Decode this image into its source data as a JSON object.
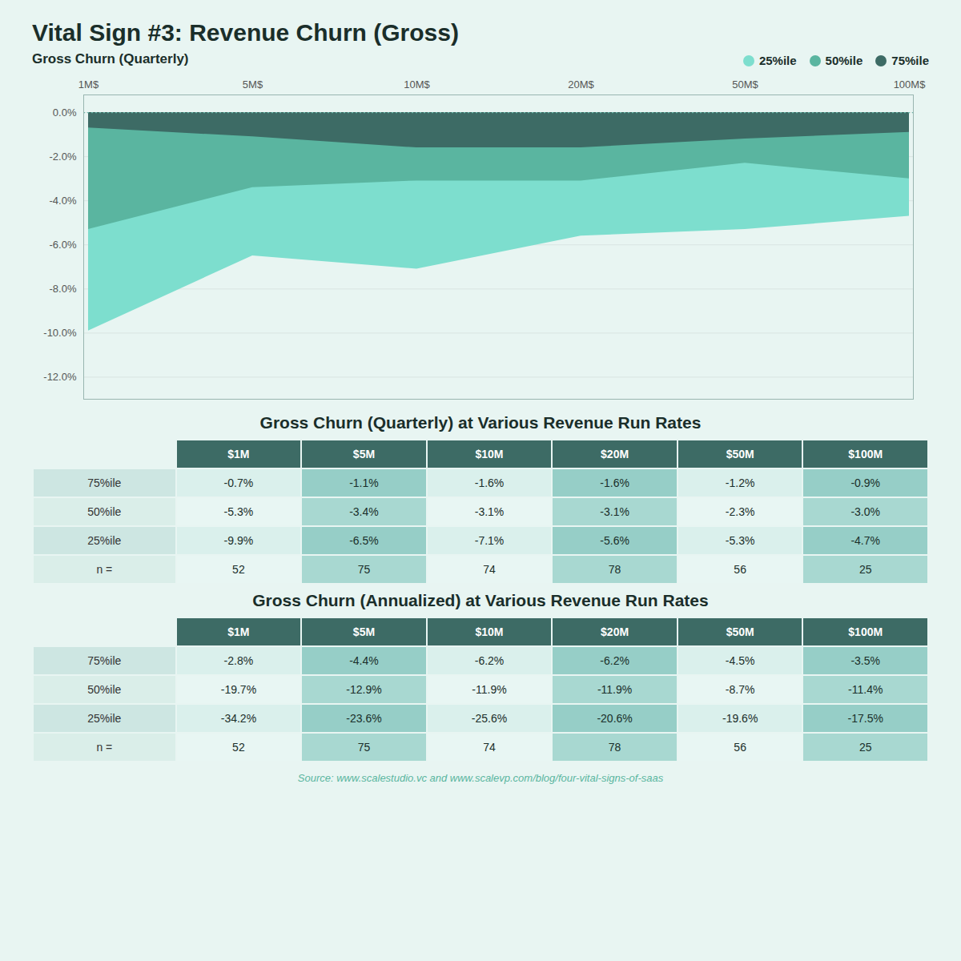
{
  "chart_data": [
    {
      "type": "area",
      "title": "Vital Sign #3: Revenue Churn (Gross)",
      "subtitle": "Gross Churn (Quarterly)",
      "caption": "Source: www.scalestudio.vc and www.scalevp.com/blog/four-vital-signs-of-saas",
      "categories": [
        "1M$",
        "5M$",
        "10M$",
        "20M$",
        "50M$",
        "100M$"
      ],
      "series": [
        {
          "name": "25%ile",
          "color": "#7ddece",
          "values": [
            -9.9,
            -6.5,
            -7.1,
            -5.6,
            -5.3,
            -4.7
          ]
        },
        {
          "name": "50%ile",
          "color": "#5ab5a0",
          "values": [
            -5.3,
            -3.4,
            -3.1,
            -3.1,
            -2.3,
            -3.0
          ]
        },
        {
          "name": "75%ile",
          "color": "#3d6b65",
          "values": [
            -0.7,
            -1.1,
            -1.6,
            -1.6,
            -1.2,
            -0.9
          ]
        }
      ],
      "ylim": [
        -13,
        0.8
      ],
      "yticks": [
        {
          "value": 0,
          "label": "0.0%"
        },
        {
          "value": -2,
          "label": "-2.0%"
        },
        {
          "value": -4,
          "label": "-4.0%"
        },
        {
          "value": -6,
          "label": "-6.0%"
        },
        {
          "value": -8,
          "label": "-8.0%"
        },
        {
          "value": -10,
          "label": "-10.0%"
        },
        {
          "value": -12,
          "label": "-12.0%"
        }
      ],
      "grid": true,
      "stacked": false,
      "legend": "upper right"
    },
    {
      "type": "table",
      "title": "Gross Churn (Quarterly) at Various Revenue Run Rates",
      "categories": [
        "$1M",
        "$5M",
        "$10M",
        "$20M",
        "$50M",
        "$100M"
      ],
      "data_labels": true,
      "series": [
        {
          "name": "75%ile",
          "values": [
            -0.7,
            -1.1,
            -1.6,
            -1.6,
            -1.2,
            -0.9
          ],
          "value_labels": [
            "-0.7%",
            "-1.1%",
            "-1.6%",
            "-1.6%",
            "-1.2%",
            "-0.9%"
          ]
        },
        {
          "name": "50%ile",
          "values": [
            -5.3,
            -3.4,
            -3.1,
            -3.1,
            -2.3,
            -3.0
          ],
          "value_labels": [
            "-5.3%",
            "-3.4%",
            "-3.1%",
            "-3.1%",
            "-2.3%",
            "-3.0%"
          ]
        },
        {
          "name": "25%ile",
          "values": [
            -9.9,
            -6.5,
            -7.1,
            -5.6,
            -5.3,
            -4.7
          ],
          "value_labels": [
            "-9.9%",
            "-6.5%",
            "-7.1%",
            "-5.6%",
            "-5.3%",
            "-4.7%"
          ]
        },
        {
          "name": "n =",
          "values": [
            52,
            75,
            74,
            78,
            56,
            25
          ]
        }
      ]
    },
    {
      "type": "table",
      "title": "Gross Churn (Annualized) at Various Revenue Run Rates",
      "categories": [
        "$1M",
        "$5M",
        "$10M",
        "$20M",
        "$50M",
        "$100M"
      ],
      "data_labels": true,
      "series": [
        {
          "name": "75%ile",
          "values": [
            -2.8,
            -4.4,
            -6.2,
            -6.2,
            -4.5,
            -3.5
          ],
          "value_labels": [
            "-2.8%",
            "-4.4%",
            "-6.2%",
            "-6.2%",
            "-4.5%",
            "-3.5%"
          ]
        },
        {
          "name": "50%ile",
          "values": [
            -19.7,
            -12.9,
            -11.9,
            -11.9,
            -8.7,
            -11.4
          ],
          "value_labels": [
            "-19.7%",
            "-12.9%",
            "-11.9%",
            "-11.9%",
            "-8.7%",
            "-11.4%"
          ]
        },
        {
          "name": "25%ile",
          "values": [
            -34.2,
            -23.6,
            -25.6,
            -20.6,
            -19.6,
            -17.5
          ],
          "value_labels": [
            "-34.2%",
            "-23.6%",
            "-25.6%",
            "-20.6%",
            "-19.6%",
            "-17.5%"
          ]
        },
        {
          "name": "n =",
          "values": [
            52,
            75,
            74,
            78,
            56,
            25
          ]
        }
      ]
    }
  ]
}
